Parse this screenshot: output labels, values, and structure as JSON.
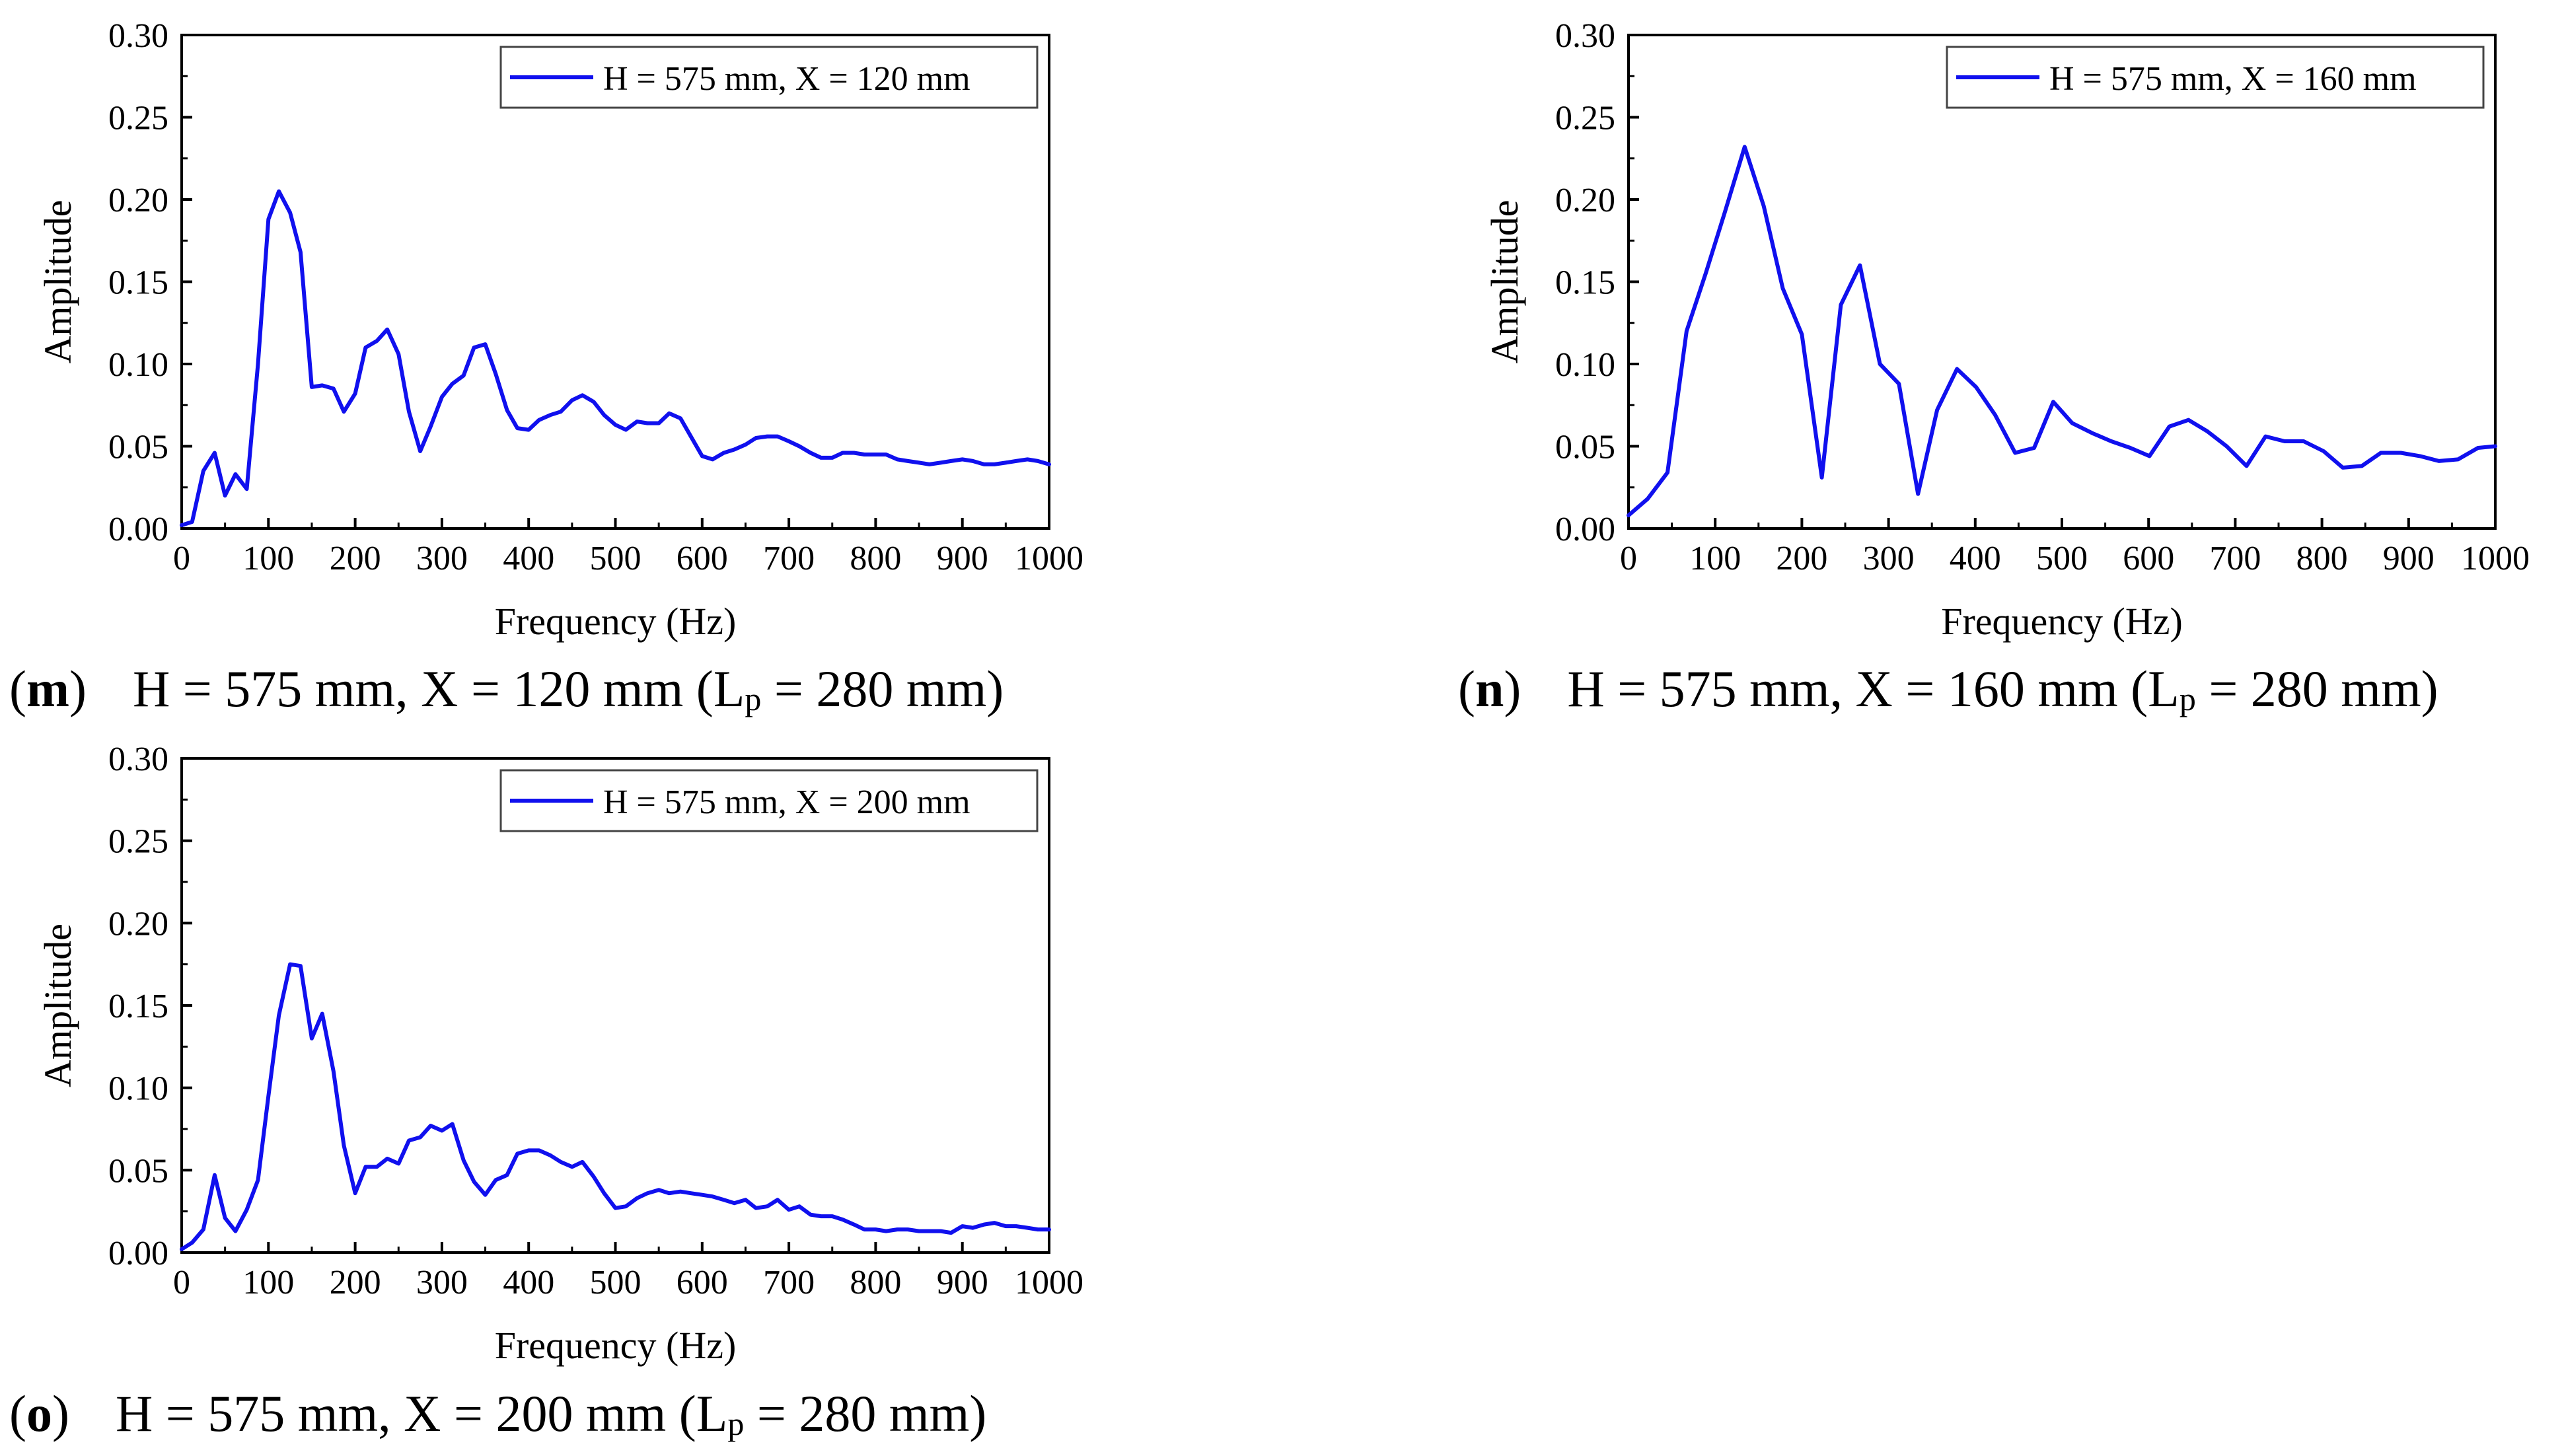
{
  "chart_data": [
    {
      "type": "line",
      "panel_letter": "m",
      "caption_label": "H = 575 mm, X = 120 mm (L",
      "caption_sub": "p",
      "caption_tail": " = 280 mm)",
      "xlabel": "Frequency (Hz)",
      "ylabel": "Amplitude",
      "xlim": [
        0,
        1000
      ],
      "ylim": [
        0,
        0.3
      ],
      "xticks": [
        "0",
        "100",
        "200",
        "300",
        "400",
        "500",
        "600",
        "700",
        "800",
        "900",
        "1000"
      ],
      "yticks": [
        "0.00",
        "0.05",
        "0.10",
        "0.15",
        "0.20",
        "0.25",
        "0.30"
      ],
      "legend_position": "top-right",
      "series": [
        {
          "name": "H = 575 mm, X = 120 mm",
          "color": "#1010ee",
          "x": [
            0,
            12,
            25,
            38,
            50,
            62,
            75,
            88,
            100,
            112,
            125,
            137,
            150,
            162,
            175,
            187,
            200,
            212,
            225,
            237,
            250,
            262,
            275,
            287,
            300,
            312,
            325,
            337,
            350,
            362,
            375,
            387,
            400,
            412,
            425,
            437,
            450,
            462,
            475,
            487,
            500,
            512,
            525,
            537,
            550,
            562,
            575,
            587,
            600,
            612,
            625,
            637,
            650,
            662,
            675,
            687,
            700,
            712,
            725,
            737,
            750,
            762,
            775,
            787,
            800,
            812,
            825,
            837,
            850,
            862,
            875,
            887,
            900,
            912,
            925,
            937,
            950,
            962,
            975,
            987,
            1000
          ],
          "y": [
            0.002,
            0.004,
            0.035,
            0.046,
            0.02,
            0.033,
            0.024,
            0.1,
            0.188,
            0.205,
            0.192,
            0.168,
            0.086,
            0.087,
            0.085,
            0.071,
            0.082,
            0.11,
            0.114,
            0.121,
            0.106,
            0.071,
            0.047,
            0.062,
            0.08,
            0.088,
            0.093,
            0.11,
            0.112,
            0.094,
            0.072,
            0.061,
            0.06,
            0.066,
            0.069,
            0.071,
            0.078,
            0.081,
            0.077,
            0.069,
            0.063,
            0.06,
            0.065,
            0.064,
            0.064,
            0.07,
            0.067,
            0.056,
            0.044,
            0.042,
            0.046,
            0.048,
            0.051,
            0.055,
            0.056,
            0.056,
            0.053,
            0.05,
            0.046,
            0.043,
            0.043,
            0.046,
            0.046,
            0.045,
            0.045,
            0.045,
            0.042,
            0.041,
            0.04,
            0.039,
            0.04,
            0.041,
            0.042,
            0.041,
            0.039,
            0.039,
            0.04,
            0.041,
            0.042,
            0.041,
            0.039
          ]
        }
      ]
    },
    {
      "type": "line",
      "panel_letter": "n",
      "caption_label": "H = 575 mm, X = 160 mm (L",
      "caption_sub": "p",
      "caption_tail": " = 280 mm)",
      "xlabel": "Frequency (Hz)",
      "ylabel": "Amplitude",
      "xlim": [
        0,
        1000
      ],
      "ylim": [
        0,
        0.3
      ],
      "xticks": [
        "0",
        "100",
        "200",
        "300",
        "400",
        "500",
        "600",
        "700",
        "800",
        "900",
        "1000"
      ],
      "yticks": [
        "0.00",
        "0.05",
        "0.10",
        "0.15",
        "0.20",
        "0.25",
        "0.30"
      ],
      "legend_position": "top-right",
      "series": [
        {
          "name": "H = 575 mm, X = 160 mm",
          "color": "#1010ee",
          "x": [
            0,
            22,
            45,
            67,
            89,
            111,
            134,
            156,
            178,
            200,
            223,
            245,
            267,
            290,
            312,
            334,
            356,
            379,
            401,
            423,
            446,
            468,
            490,
            512,
            535,
            557,
            579,
            601,
            624,
            646,
            668,
            690,
            713,
            735,
            757,
            779,
            802,
            824,
            846,
            868,
            891,
            913,
            935,
            957,
            980,
            1000
          ],
          "y": [
            0.008,
            0.018,
            0.034,
            0.12,
            0.155,
            0.192,
            0.232,
            0.196,
            0.146,
            0.118,
            0.031,
            0.136,
            0.16,
            0.1,
            0.088,
            0.021,
            0.072,
            0.097,
            0.086,
            0.069,
            0.046,
            0.049,
            0.077,
            0.064,
            0.058,
            0.053,
            0.049,
            0.044,
            0.062,
            0.066,
            0.059,
            0.05,
            0.038,
            0.056,
            0.053,
            0.053,
            0.047,
            0.037,
            0.038,
            0.046,
            0.046,
            0.044,
            0.041,
            0.042,
            0.049,
            0.05
          ]
        }
      ]
    },
    {
      "type": "line",
      "panel_letter": "o",
      "caption_label": "H = 575 mm, X = 200 mm (L",
      "caption_sub": "p",
      "caption_tail": " = 280 mm)",
      "xlabel": "Frequency (Hz)",
      "ylabel": "Amplitude",
      "xlim": [
        0,
        1000
      ],
      "ylim": [
        0,
        0.3
      ],
      "xticks": [
        "0",
        "100",
        "200",
        "300",
        "400",
        "500",
        "600",
        "700",
        "800",
        "900",
        "1000"
      ],
      "yticks": [
        "0.00",
        "0.05",
        "0.10",
        "0.15",
        "0.20",
        "0.25",
        "0.30"
      ],
      "legend_position": "top-right",
      "series": [
        {
          "name": "H = 575 mm, X = 200 mm",
          "color": "#1010ee",
          "x": [
            0,
            12,
            25,
            38,
            50,
            62,
            75,
            88,
            100,
            112,
            125,
            137,
            150,
            162,
            175,
            187,
            200,
            212,
            225,
            237,
            250,
            262,
            275,
            287,
            300,
            312,
            325,
            337,
            350,
            362,
            375,
            387,
            400,
            412,
            425,
            437,
            450,
            462,
            475,
            487,
            500,
            512,
            525,
            537,
            550,
            562,
            575,
            587,
            600,
            612,
            625,
            637,
            650,
            662,
            675,
            687,
            700,
            712,
            725,
            737,
            750,
            762,
            775,
            787,
            800,
            812,
            825,
            837,
            850,
            862,
            875,
            887,
            900,
            912,
            925,
            937,
            950,
            962,
            975,
            987,
            1000
          ],
          "y": [
            0.002,
            0.006,
            0.014,
            0.047,
            0.021,
            0.013,
            0.026,
            0.044,
            0.095,
            0.144,
            0.175,
            0.174,
            0.13,
            0.145,
            0.11,
            0.065,
            0.036,
            0.052,
            0.052,
            0.057,
            0.054,
            0.068,
            0.07,
            0.077,
            0.074,
            0.078,
            0.056,
            0.043,
            0.035,
            0.044,
            0.047,
            0.06,
            0.062,
            0.062,
            0.059,
            0.055,
            0.052,
            0.055,
            0.046,
            0.036,
            0.027,
            0.028,
            0.033,
            0.036,
            0.038,
            0.036,
            0.037,
            0.036,
            0.035,
            0.034,
            0.032,
            0.03,
            0.032,
            0.027,
            0.028,
            0.032,
            0.026,
            0.028,
            0.023,
            0.022,
            0.022,
            0.02,
            0.017,
            0.014,
            0.014,
            0.013,
            0.014,
            0.014,
            0.013,
            0.013,
            0.013,
            0.012,
            0.016,
            0.015,
            0.017,
            0.018,
            0.016,
            0.016,
            0.015,
            0.014,
            0.014
          ]
        }
      ]
    }
  ]
}
